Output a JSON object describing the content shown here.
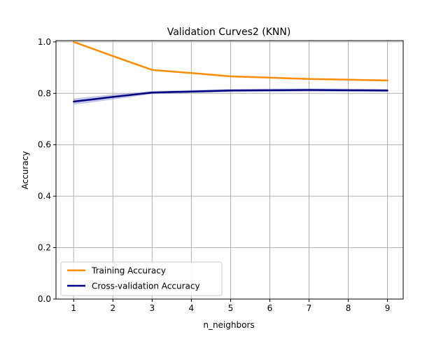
{
  "chart_data": {
    "type": "line",
    "title": "Validation Curves2 (KNN)",
    "xlabel": "n_neighbors",
    "ylabel": "Accuracy",
    "x": [
      1,
      2,
      3,
      4,
      5,
      6,
      7,
      8,
      9
    ],
    "xlim": [
      0.55,
      9.4
    ],
    "ylim": [
      0.0,
      1.005
    ],
    "xticks": [
      1,
      2,
      3,
      4,
      5,
      6,
      7,
      8,
      9
    ],
    "yticks": [
      0.0,
      0.2,
      0.4,
      0.6,
      0.8,
      1.0
    ],
    "ytick_labels": [
      "0.0",
      "0.2",
      "0.4",
      "0.6",
      "0.8",
      "1.0"
    ],
    "grid": true,
    "legend_position": "lower-left",
    "series": [
      {
        "name": "Training Accuracy",
        "color": "#ff8c00",
        "values": [
          1.0,
          0.945,
          0.891,
          0.879,
          0.866,
          0.861,
          0.856,
          0.853,
          0.85
        ]
      },
      {
        "name": "Cross-validation Accuracy",
        "color": "#000080",
        "band_color": "#7f7fcc",
        "values": [
          0.768,
          0.786,
          0.803,
          0.807,
          0.811,
          0.812,
          0.813,
          0.812,
          0.811
        ],
        "band_lower": [
          0.756,
          0.776,
          0.797,
          0.801,
          0.805,
          0.806,
          0.807,
          0.806,
          0.805
        ],
        "band_upper": [
          0.78,
          0.796,
          0.809,
          0.813,
          0.817,
          0.818,
          0.819,
          0.818,
          0.817
        ]
      }
    ]
  }
}
